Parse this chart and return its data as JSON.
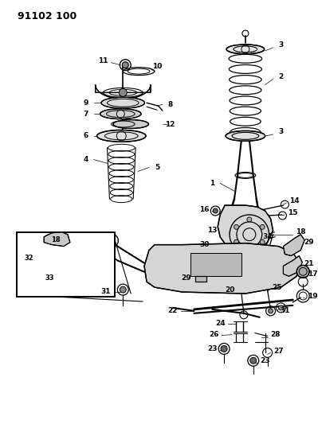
{
  "title_code": "91102 100",
  "bg_color": "#ffffff",
  "line_color": "#000000",
  "fig_width": 3.99,
  "fig_height": 5.33,
  "dpi": 100
}
